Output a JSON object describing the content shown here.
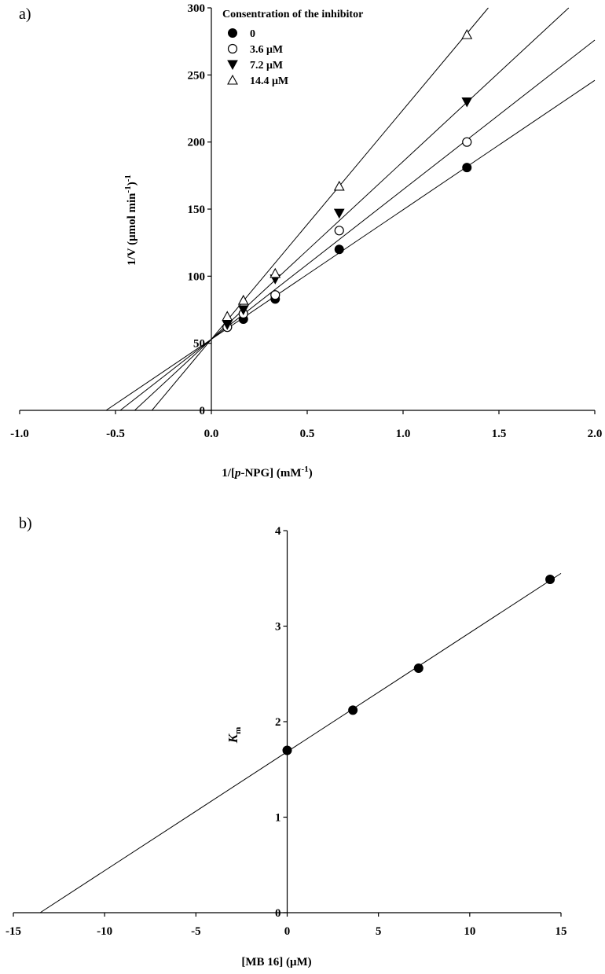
{
  "chart_data": [
    {
      "panel": "a)",
      "type": "scatter",
      "xlabel": {
        "prefix": "1/[",
        "italic": "p",
        "middle": "-NPG] (mM",
        "sup": "-1",
        "suffix": ")"
      },
      "ylabel": {
        "main": "1/V (μmol min",
        "sup1": "-1",
        "mid": ")",
        "sup2": "-1"
      },
      "xlim": [
        -1.0,
        2.0
      ],
      "ylim": [
        0,
        300
      ],
      "xticks": [
        -1.0,
        -0.5,
        0.0,
        0.5,
        1.0,
        1.5,
        2.0
      ],
      "xtick_labels": [
        "-1.0",
        "-0.5",
        "0.0",
        "0.5",
        "1.0",
        "1.5",
        "2.0"
      ],
      "yticks": [
        0,
        50,
        100,
        150,
        200,
        250,
        300
      ],
      "ytick_labels": [
        "0",
        "50",
        "100",
        "150",
        "200",
        "250",
        "300"
      ],
      "legend_title": "Consentration of the inhibitor",
      "legend_position": "top-left",
      "series": [
        {
          "name": "0",
          "marker": "filled-circle",
          "x": [
            0.083,
            0.167,
            0.333,
            0.667,
            1.333
          ],
          "y": [
            62,
            68,
            83,
            120,
            181
          ],
          "line": {
            "slope": 96.5,
            "intercept": 53
          }
        },
        {
          "name": "3.6 μM",
          "marker": "open-circle",
          "x": [
            0.083,
            0.167,
            0.333,
            0.667,
            1.333
          ],
          "y": [
            62,
            72,
            86,
            134,
            200
          ],
          "line": {
            "slope": 111.5,
            "intercept": 53
          }
        },
        {
          "name": "7.2 μM",
          "marker": "filled-triangle-down",
          "x": [
            0.083,
            0.167,
            0.333,
            0.667,
            1.333
          ],
          "y": [
            64,
            75,
            98,
            147,
            230
          ],
          "line": {
            "slope": 132.5,
            "intercept": 53
          }
        },
        {
          "name": "14.4 μM",
          "marker": "open-triangle-up",
          "x": [
            0.083,
            0.167,
            0.333,
            0.667,
            1.333
          ],
          "y": [
            70,
            82,
            102,
            167,
            280
          ],
          "line": {
            "slope": 171,
            "intercept": 53
          }
        }
      ]
    },
    {
      "panel": "b)",
      "type": "scatter",
      "xlabel": "[MB 16] (μM)",
      "ylabel": {
        "italic": "K",
        "sub": "m"
      },
      "xlim": [
        -15,
        15
      ],
      "ylim": [
        0,
        4
      ],
      "xticks": [
        -15,
        -10,
        -5,
        0,
        5,
        10,
        15
      ],
      "xtick_labels": [
        "-15",
        "-10",
        "-5",
        "0",
        "5",
        "10",
        "15"
      ],
      "yticks": [
        0,
        1,
        2,
        3,
        4
      ],
      "ytick_labels": [
        "0",
        "1",
        "2",
        "3",
        "4"
      ],
      "series": [
        {
          "marker": "filled-circle",
          "x": [
            0,
            3.6,
            7.2,
            14.4
          ],
          "y": [
            1.7,
            2.12,
            2.56,
            3.49
          ],
          "line": {
            "slope": 0.1245,
            "intercept": 1.685
          }
        }
      ]
    }
  ]
}
